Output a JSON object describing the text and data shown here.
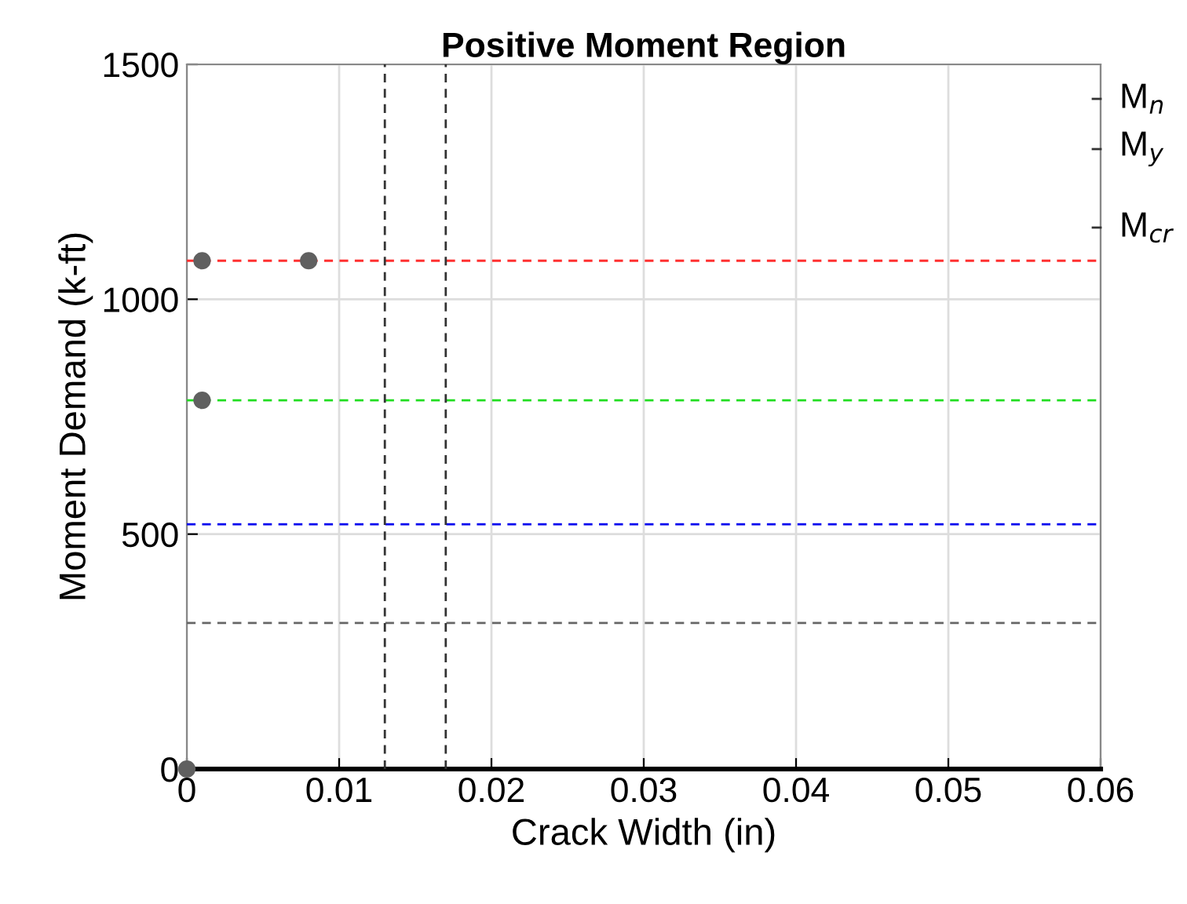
{
  "chart_data": {
    "type": "scatter",
    "title": "Positive Moment Region",
    "xlabel": "Crack Width (in)",
    "ylabel": "Moment Demand (k-ft)",
    "series": [
      {
        "color": "#606060",
        "x": [
          0,
          0.001,
          0.008,
          0.001
        ],
        "values": [
          0,
          1082,
          1082,
          785
        ]
      }
    ],
    "xlim": [
      0,
      0.06
    ],
    "xticks": [
      0,
      0.01,
      0.02,
      0.03,
      0.04,
      0.05,
      0.06
    ],
    "ylim": [
      0,
      1500
    ],
    "yticks": [
      0,
      500,
      1000,
      1500
    ],
    "annotations": [
      "M$_{n}$",
      "M$_{y}$",
      "M$_{cr}$"
    ],
    "ref_lines": [
      {
        "axis": "y",
        "value": 1082,
        "color": "#ff3030",
        "line_style": "dashed"
      },
      {
        "axis": "y",
        "value": 785,
        "color": "#20dd20",
        "line_style": "dashed"
      },
      {
        "axis": "y",
        "value": 521,
        "color": "#0000ee",
        "line_style": "dashed"
      },
      {
        "axis": "y",
        "value": 311,
        "color": "#666666",
        "line_style": "dashed"
      },
      {
        "axis": "x",
        "value": 0.013,
        "color": "#333333",
        "line_style": "dashed"
      },
      {
        "axis": "x",
        "value": 0.017,
        "color": "#333333",
        "line_style": "dashed"
      }
    ],
    "grid": true,
    "marker": "circle"
  }
}
